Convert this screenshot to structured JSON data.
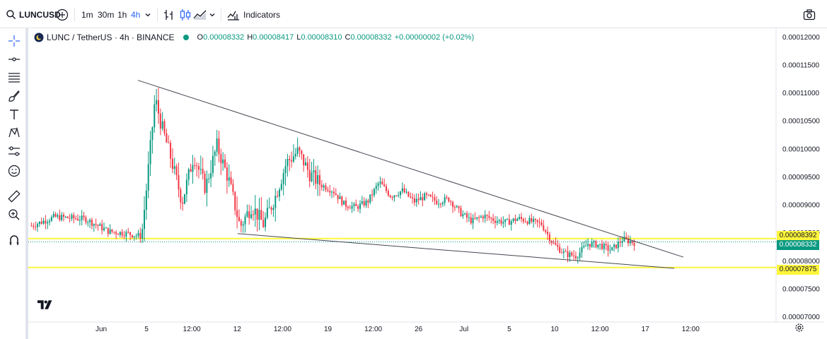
{
  "toolbar": {
    "symbol": "LUNCUSD",
    "timeframes": [
      {
        "label": "1m",
        "active": false
      },
      {
        "label": "30m",
        "active": false
      },
      {
        "label": "1h",
        "active": false
      },
      {
        "label": "4h",
        "active": true
      }
    ],
    "indicators_label": "Indicators",
    "icons": [
      "search-icon",
      "add-symbol-icon",
      "chevron-down-icon",
      "bar-style-icon",
      "candles-icon",
      "area-chart-icon",
      "indicators-icon",
      "camera-icon"
    ]
  },
  "left_tools": [
    "crosshair-icon",
    "trend-line-icon",
    "fib-icon",
    "brush-icon",
    "text-icon",
    "pattern-icon",
    "measure-tools-icon",
    "emoji-icon",
    "ruler-icon",
    "zoom-icon",
    "magnet-icon"
  ],
  "legend": {
    "title": "LUNC / TetherUS · 4h · BINANCE",
    "o_label": "O",
    "o_value": "0.00008332",
    "h_label": "H",
    "h_value": "0.00008417",
    "l_label": "L",
    "l_value": "0.00008310",
    "c_label": "C",
    "c_value": "0.00008332",
    "change": "+0.00000002 (+0.02%)"
  },
  "price_tags": {
    "line_1": "0.00008392",
    "current": "0.00008332",
    "line_2": "0.00007875"
  },
  "colors": {
    "up": "#089981",
    "down": "#f23645",
    "accent": "#2962ff",
    "highlight": "#fff53b"
  },
  "chart_data": {
    "type": "candlestick",
    "symbol": "LUNC / TetherUS",
    "interval": "4h",
    "exchange": "BINANCE",
    "y_ticks": [
      "0.00012000",
      "0.00011500",
      "0.00011000",
      "0.00010500",
      "0.00010000",
      "0.00009500",
      "0.00009000",
      "0.00008500",
      "0.00008000",
      "0.00007500",
      "0.00007000"
    ],
    "ylim": [
      6.9e-05,
      0.0001215
    ],
    "x_ticks": [
      "Jun",
      "5",
      "12:00",
      "12",
      "12:00",
      "19",
      "12:00",
      "26",
      "Jul",
      "5",
      "10",
      "12:00",
      "17",
      "12:00"
    ],
    "horizontal_lines": [
      8.392e-05,
      7.875e-05
    ],
    "current_price": 8.332e-05,
    "trend_lines": [
      {
        "from": [
          0,
          0.0001122
        ],
        "to": [
          1,
          8.06e-05
        ]
      },
      {
        "from": [
          0,
          8.48e-05
        ],
        "to": [
          1,
          7.86e-05
        ]
      }
    ],
    "path_points": [
      {
        "t": 0,
        "v": 8.62e-05
      },
      {
        "t": 12,
        "v": 8.78e-05
      },
      {
        "t": 28,
        "v": 8.74e-05
      },
      {
        "t": 40,
        "v": 8.52e-05
      },
      {
        "t": 50,
        "v": 8.48e-05
      },
      {
        "t": 57,
        "v": 8.43e-05
      },
      {
        "t": 60,
        "v": 9.45e-05
      },
      {
        "t": 64,
        "v": 0.000109
      },
      {
        "t": 67,
        "v": 0.0001045
      },
      {
        "t": 72,
        "v": 9.85e-05
      },
      {
        "t": 78,
        "v": 9.05e-05
      },
      {
        "t": 84,
        "v": 9.88e-05
      },
      {
        "t": 90,
        "v": 9.3e-05
      },
      {
        "t": 96,
        "v": 0.0001005
      },
      {
        "t": 102,
        "v": 9.45e-05
      },
      {
        "t": 108,
        "v": 8.6e-05
      },
      {
        "t": 114,
        "v": 8.98e-05
      },
      {
        "t": 120,
        "v": 8.65e-05
      },
      {
        "t": 126,
        "v": 9.12e-05
      },
      {
        "t": 132,
        "v": 9.75e-05
      },
      {
        "t": 138,
        "v": 9.95e-05
      },
      {
        "t": 144,
        "v": 9.55e-05
      },
      {
        "t": 150,
        "v": 9.35e-05
      },
      {
        "t": 156,
        "v": 9.25e-05
      },
      {
        "t": 162,
        "v": 9e-05
      },
      {
        "t": 168,
        "v": 8.95e-05
      },
      {
        "t": 174,
        "v": 9.05e-05
      },
      {
        "t": 180,
        "v": 9.4e-05
      },
      {
        "t": 186,
        "v": 9.15e-05
      },
      {
        "t": 192,
        "v": 9.25e-05
      },
      {
        "t": 198,
        "v": 9.05e-05
      },
      {
        "t": 204,
        "v": 9.15e-05
      },
      {
        "t": 210,
        "v": 9.05e-05
      },
      {
        "t": 216,
        "v": 9.1e-05
      },
      {
        "t": 222,
        "v": 8.85e-05
      },
      {
        "t": 228,
        "v": 8.7e-05
      },
      {
        "t": 234,
        "v": 8.8e-05
      },
      {
        "t": 240,
        "v": 8.72e-05
      },
      {
        "t": 246,
        "v": 8.68e-05
      },
      {
        "t": 252,
        "v": 8.75e-05
      },
      {
        "t": 258,
        "v": 8.7e-05
      },
      {
        "t": 264,
        "v": 8.65e-05
      },
      {
        "t": 270,
        "v": 8.3e-05
      },
      {
        "t": 276,
        "v": 8.12e-05
      },
      {
        "t": 282,
        "v": 8.08e-05
      },
      {
        "t": 288,
        "v": 8.3e-05
      },
      {
        "t": 294,
        "v": 8.28e-05
      },
      {
        "t": 300,
        "v": 8.18e-05
      },
      {
        "t": 306,
        "v": 8.38e-05
      },
      {
        "t": 312,
        "v": 8.32e-05
      }
    ]
  }
}
